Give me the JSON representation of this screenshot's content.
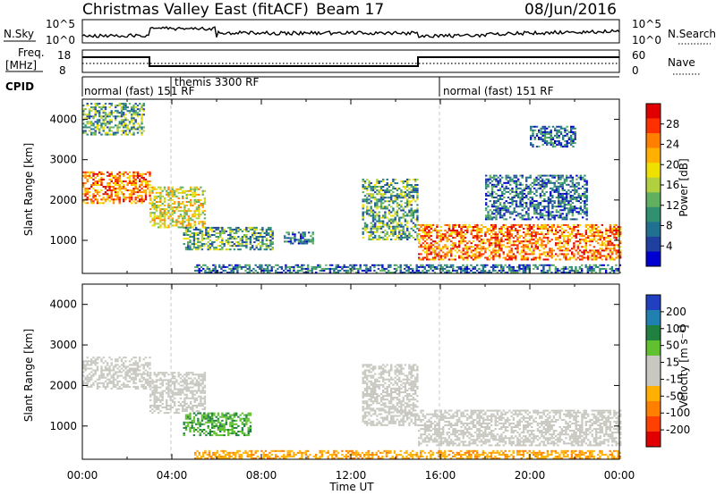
{
  "header": {
    "title": "Christmas Valley East (fitACF)",
    "beam": "Beam 17",
    "date": "08/Jun/2016"
  },
  "panels": {
    "nsky_label": "N.Sky",
    "nsky_ticks": [
      "10^5",
      "10^0"
    ],
    "nsearch_label": "N.Search",
    "nsearch_ticks": [
      "10^5",
      "10^0"
    ],
    "freq_label": "Freq.",
    "freq_unit": "[MHz]",
    "freq_ticks": [
      "18",
      "8"
    ],
    "nave_label": "Nave",
    "nave_ticks": [
      "60",
      "0"
    ],
    "cpid_label": "CPID",
    "cpid_segments": [
      {
        "label": "normal (fast) 151 RF",
        "start": "00:00"
      },
      {
        "label": "themis 3300 RF",
        "start": "03:00"
      },
      {
        "label": "normal (fast) 151 RF",
        "start": "15:00"
      }
    ]
  },
  "chart_data": [
    {
      "type": "heatmap",
      "name": "Power",
      "ylabel": "Slant Range [km]",
      "yticks": [
        "4000",
        "3000",
        "2000",
        "1000"
      ],
      "ylim": [
        180,
        4500
      ],
      "xlim_hours": [
        0,
        24
      ],
      "colorbar_label": "Power [dB]",
      "colorbar_ticks": [
        "28",
        "24",
        "20",
        "16",
        "12",
        "8",
        "4"
      ],
      "colorbar_colors": [
        "#e00000",
        "#ff3000",
        "#ff8000",
        "#ffb000",
        "#f0e000",
        "#b0d040",
        "#60b060",
        "#309070",
        "#207090",
        "#2040a0",
        "#0000d0"
      ],
      "echo_regions": [
        {
          "t0": 0.0,
          "t1": 3.0,
          "r0": 1900,
          "r1": 2700,
          "level": "high"
        },
        {
          "t0": 0.0,
          "t1": 2.7,
          "r0": 3600,
          "r1": 4400,
          "level": "medium"
        },
        {
          "t0": 3.0,
          "t1": 5.5,
          "r0": 1300,
          "r1": 2300,
          "level": "medium-high"
        },
        {
          "t0": 4.5,
          "t1": 8.5,
          "r0": 750,
          "r1": 1300,
          "level": "medium"
        },
        {
          "t0": 9.0,
          "t1": 10.3,
          "r0": 900,
          "r1": 1200,
          "level": "low"
        },
        {
          "t0": 12.5,
          "t1": 15.0,
          "r0": 1000,
          "r1": 2500,
          "level": "medium"
        },
        {
          "t0": 15.0,
          "t1": 24.0,
          "r0": 500,
          "r1": 1400,
          "level": "high"
        },
        {
          "t0": 18.0,
          "t1": 22.5,
          "r0": 1500,
          "r1": 2600,
          "level": "low"
        },
        {
          "t0": 20.0,
          "t1": 22.0,
          "r0": 3300,
          "r1": 3800,
          "level": "low"
        },
        {
          "t0": 5.0,
          "t1": 24.0,
          "r0": 180,
          "r1": 400,
          "level": "low"
        }
      ]
    },
    {
      "type": "heatmap",
      "name": "Velocity",
      "ylabel": "Slant Range [km]",
      "yticks": [
        "4000",
        "3000",
        "2000",
        "1000"
      ],
      "ylim": [
        180,
        4500
      ],
      "xlim_hours": [
        0,
        24
      ],
      "xticks": [
        "00:00",
        "04:00",
        "08:00",
        "12:00",
        "16:00",
        "20:00",
        "00:00"
      ],
      "xlabel": "Time UT",
      "colorbar_label": "Velocity [m s⁻¹]",
      "colorbar_ticks": [
        "200",
        "100",
        "50",
        "15",
        "-15",
        "-50",
        "-100",
        "-200"
      ],
      "colorbar_colors": [
        "#2040c0",
        "#2080b0",
        "#208040",
        "#60c030",
        "#c8c8c0",
        "#c8c8c0",
        "#ffb000",
        "#ff8000",
        "#ff4000",
        "#e00000"
      ],
      "echo_regions": [
        {
          "t0": 0.0,
          "t1": 3.0,
          "r0": 1900,
          "r1": 2700,
          "level": "ground"
        },
        {
          "t0": 3.0,
          "t1": 5.5,
          "r0": 1300,
          "r1": 2300,
          "level": "ground"
        },
        {
          "t0": 4.5,
          "t1": 7.5,
          "r0": 750,
          "r1": 1300,
          "level": "positive"
        },
        {
          "t0": 12.5,
          "t1": 15.0,
          "r0": 1000,
          "r1": 2500,
          "level": "ground"
        },
        {
          "t0": 15.0,
          "t1": 24.0,
          "r0": 500,
          "r1": 1400,
          "level": "ground"
        },
        {
          "t0": 5.0,
          "t1": 24.0,
          "r0": 180,
          "r1": 400,
          "level": "negative"
        }
      ]
    }
  ]
}
